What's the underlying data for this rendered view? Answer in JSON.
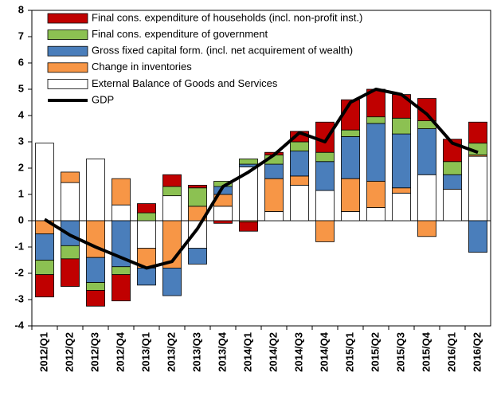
{
  "chart_data": {
    "type": "bar",
    "stacked": true,
    "categories": [
      "2012/Q1",
      "2012/Q2",
      "2012/Q3",
      "2012/Q4",
      "2013/Q1",
      "2013/Q2",
      "2013/Q3",
      "2013/Q4",
      "2014/Q1",
      "2014/Q2",
      "2014/Q3",
      "2014/Q4",
      "2015/Q1",
      "2015/Q2",
      "2015/Q3",
      "2015/Q4",
      "2016/Q1",
      "2016/Q2"
    ],
    "series": [
      {
        "name": "Final cons. expenditure of households  (incl. non-profit inst.)",
        "color": "#c00000",
        "values": [
          -0.85,
          -1.05,
          -0.6,
          -1.0,
          0.35,
          0.45,
          0.1,
          -0.1,
          -0.35,
          0.1,
          0.4,
          1.15,
          1.15,
          1.05,
          0.9,
          0.85,
          0.85,
          0.8
        ]
      },
      {
        "name": "Final cons. expenditure of government",
        "color": "#8cc152",
        "values": [
          -0.55,
          -0.5,
          -0.3,
          -0.3,
          0.3,
          0.35,
          0.7,
          0.2,
          0.2,
          0.35,
          0.35,
          0.35,
          0.25,
          0.25,
          0.6,
          0.3,
          0.5,
          0.45
        ]
      },
      {
        "name": "Gross fixed capital form. (incl. net acquirement of wealth)",
        "color": "#4a7ebb",
        "values": [
          -1.0,
          -0.95,
          -0.95,
          -1.75,
          -0.65,
          -1.05,
          -0.6,
          0.3,
          0.1,
          0.55,
          0.95,
          1.1,
          1.6,
          2.2,
          2.05,
          1.75,
          0.55,
          -1.2
        ]
      },
      {
        "name": "Change in inventories",
        "color": "#f79646",
        "values": [
          -0.5,
          0.4,
          -1.4,
          1.0,
          -0.75,
          -1.8,
          0.55,
          0.45,
          -0.05,
          1.25,
          0.35,
          -0.8,
          1.25,
          1.0,
          0.2,
          -0.6,
          0,
          0.05
        ]
      },
      {
        "name": "External Balance of Goods and Services",
        "color": "#ffffff",
        "values": [
          2.95,
          1.45,
          2.35,
          0.6,
          -1.05,
          0.95,
          -1.05,
          0.55,
          2.05,
          0.35,
          1.35,
          1.15,
          0.35,
          0.5,
          1.05,
          1.75,
          1.2,
          2.45
        ]
      }
    ],
    "line_series": {
      "type": "line",
      "name": "GDP",
      "color": "#000000",
      "values": [
        0.05,
        -0.55,
        -1.0,
        -1.4,
        -1.8,
        -1.55,
        -0.3,
        1.3,
        1.85,
        2.5,
        3.35,
        3.0,
        4.5,
        5.0,
        4.8,
        4.05,
        2.95,
        2.6
      ]
    },
    "ylim": [
      -4,
      8
    ],
    "yticks": [
      -4,
      -3,
      -2,
      -1,
      0,
      1,
      2,
      3,
      4,
      5,
      6,
      7,
      8
    ]
  }
}
